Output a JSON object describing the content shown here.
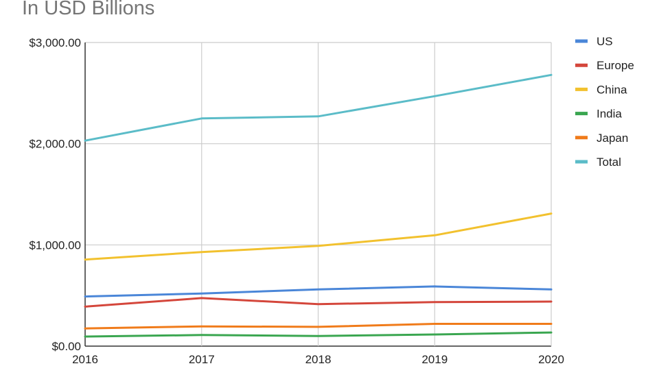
{
  "chart_data": {
    "type": "line",
    "title": "In USD Billions",
    "categories": [
      "2016",
      "2017",
      "2018",
      "2019",
      "2020"
    ],
    "ylim": [
      0,
      3000
    ],
    "y_ticks": [
      0,
      1000,
      2000,
      3000
    ],
    "y_tick_labels": [
      "$0.00",
      "$1,000.00",
      "$2,000.00",
      "$3,000.00"
    ],
    "grid": true,
    "legend_position": "right",
    "series": [
      {
        "name": "US",
        "color": "#4a86d8",
        "values": [
          490,
          520,
          560,
          590,
          560
        ]
      },
      {
        "name": "Europe",
        "color": "#d4463b",
        "values": [
          390,
          475,
          415,
          435,
          440
        ]
      },
      {
        "name": "China",
        "color": "#f2c12e",
        "values": [
          855,
          930,
          990,
          1095,
          1310
        ]
      },
      {
        "name": "India",
        "color": "#3aa650",
        "values": [
          95,
          110,
          100,
          115,
          135
        ]
      },
      {
        "name": "Japan",
        "color": "#f07b1a",
        "values": [
          175,
          195,
          190,
          220,
          220
        ]
      },
      {
        "name": "Total",
        "color": "#5bbcc8",
        "values": [
          2030,
          2250,
          2270,
          2470,
          2680
        ]
      }
    ]
  }
}
